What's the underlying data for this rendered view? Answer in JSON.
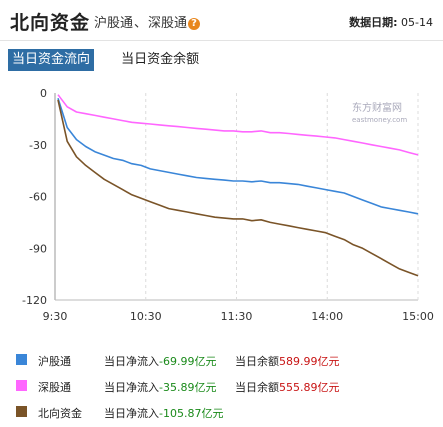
{
  "header": {
    "title": "北向资金",
    "link_sh": "沪股通",
    "separator": "、",
    "link_sz": "深股通",
    "help_icon": "question-icon",
    "date_label": "数据日期:",
    "date_value": "05-14"
  },
  "tabs": [
    {
      "label": "当日资金流向",
      "active": true
    },
    {
      "label": "当日资金余额",
      "active": false
    }
  ],
  "watermark": {
    "text": "东方财富网",
    "sub": "eastmoney.com"
  },
  "chart_data": {
    "type": "line",
    "title": "",
    "xlabel": "",
    "ylabel": "",
    "x_ticks": [
      "9:30",
      "10:30",
      "11:30",
      "14:00",
      "15:00"
    ],
    "y_ticks": [
      0,
      -30,
      -60,
      -90,
      -120
    ],
    "ylim": [
      -120,
      0
    ],
    "grid": "vertical dashed",
    "series": [
      {
        "name": "沪股通",
        "color": "#3a86d8",
        "values": [
          -3,
          -20,
          -27,
          -31,
          -34,
          -36,
          -38,
          -39,
          -41,
          -42,
          -44,
          -45,
          -46,
          -47,
          -48,
          -49,
          -49.5,
          -50,
          -50.5,
          -51,
          -51,
          -51.5,
          -51,
          -52,
          -52,
          -52.5,
          -53,
          -54,
          -55,
          -56,
          -57,
          -58,
          -60,
          -62,
          -64,
          -66,
          -67,
          -68,
          -69,
          -70
        ]
      },
      {
        "name": "深股通",
        "color": "#ff66ff",
        "values": [
          -1,
          -8,
          -11,
          -12,
          -13,
          -14,
          -15,
          -16,
          -17,
          -17.5,
          -18,
          -18.5,
          -19,
          -19.5,
          -20,
          -20.5,
          -21,
          -21.5,
          -22,
          -22,
          -22.5,
          -22.5,
          -22,
          -23,
          -23,
          -23.5,
          -24,
          -24.5,
          -25,
          -25.5,
          -26,
          -27,
          -28,
          -29,
          -30,
          -31,
          -32,
          -33,
          -34.5,
          -35.9
        ]
      },
      {
        "name": "北向资金",
        "color": "#7a5428",
        "values": [
          -4,
          -28,
          -37,
          -42,
          -46,
          -50,
          -53,
          -56,
          -59,
          -61,
          -63,
          -65,
          -67,
          -68,
          -69,
          -70,
          -71,
          -72,
          -72.5,
          -73,
          -73,
          -74,
          -73.5,
          -75,
          -76,
          -77,
          -78,
          -79,
          -80,
          -81,
          -83,
          -85,
          -88,
          -90,
          -93,
          -96,
          -99,
          -102,
          -104,
          -105.9
        ]
      }
    ]
  },
  "legend": [
    {
      "name": "沪股通",
      "color": "#3a86d8",
      "flow_label": "当日净流入",
      "flow_value": "-69.99亿元",
      "balance_label": "当日余额",
      "balance_value": "589.99亿元"
    },
    {
      "name": "深股通",
      "color": "#ff66ff",
      "flow_label": "当日净流入",
      "flow_value": "-35.89亿元",
      "balance_label": "当日余额",
      "balance_value": "555.89亿元"
    },
    {
      "name": "北向资金",
      "color": "#7a5428",
      "flow_label": "当日净流入",
      "flow_value": "-105.87亿元",
      "balance_label": "",
      "balance_value": ""
    }
  ]
}
